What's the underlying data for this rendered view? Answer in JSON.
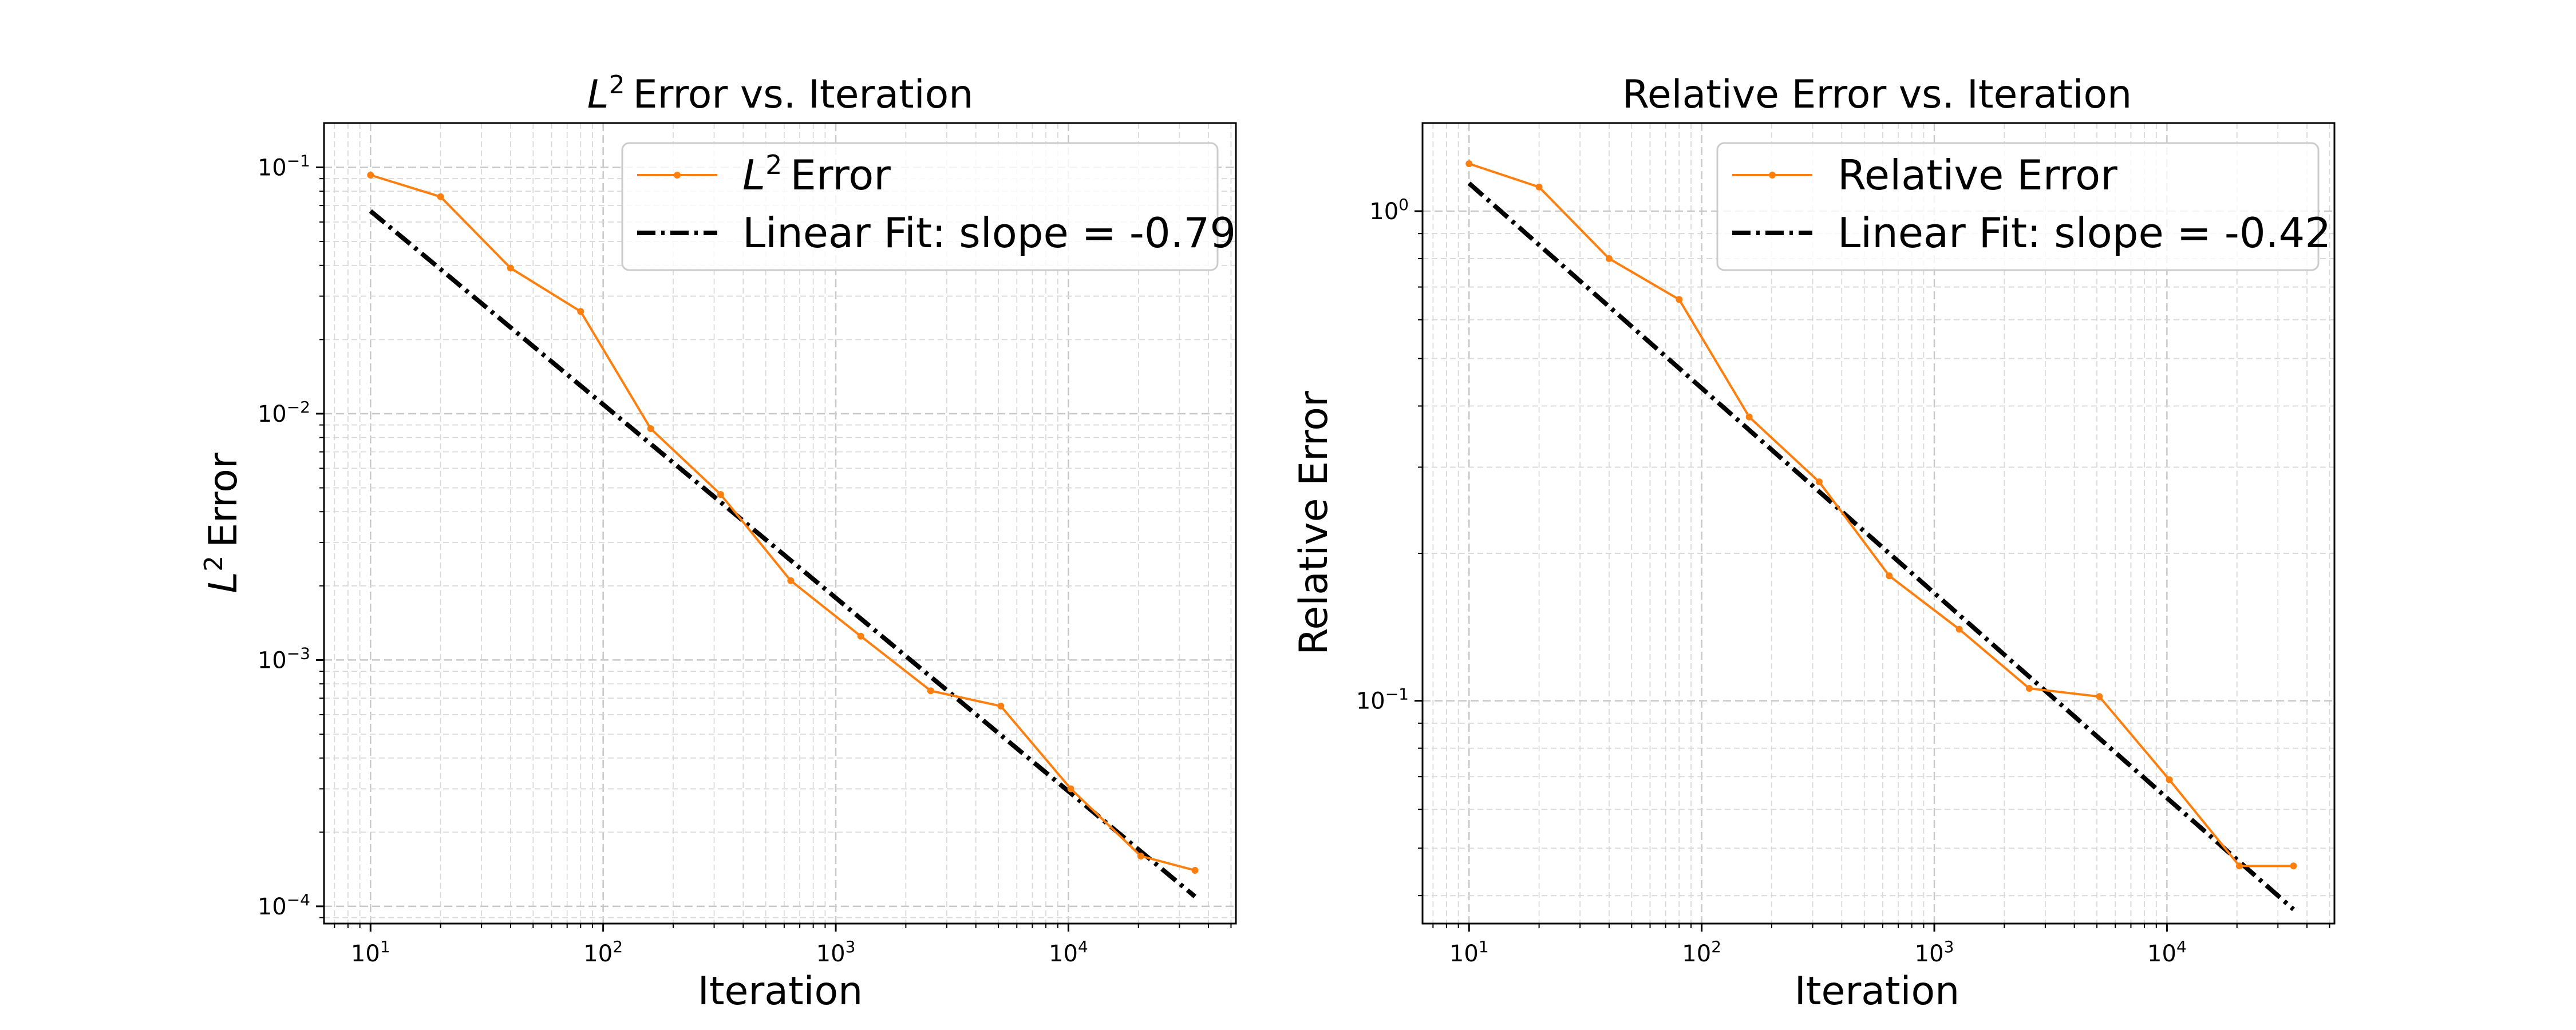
{
  "chart_data": [
    {
      "type": "line",
      "title_main": "Error vs. Iteration",
      "title_prefix": "L",
      "title_sup": "2",
      "xlabel": "Iteration",
      "ylabel_main": "Error",
      "ylabel_prefix": "L",
      "ylabel_sup": "2",
      "x_log_range": [
        0.8,
        4.72
      ],
      "y_log_range": [
        -4.07,
        -0.82
      ],
      "x_ticks": [
        1,
        2,
        3,
        4
      ],
      "y_ticks": [
        -4,
        -3,
        -2,
        -1
      ],
      "series": [
        {
          "name_main": "Error",
          "name_prefix": "L",
          "name_sup": "2",
          "style": "data",
          "color": "#ff7f0e",
          "x": [
            10,
            20,
            40,
            80,
            160,
            320,
            640,
            1280,
            2560,
            5120,
            10240,
            20480,
            35000
          ],
          "y": [
            0.093,
            0.076,
            0.039,
            0.026,
            0.0087,
            0.0047,
            0.0021,
            0.00125,
            0.00075,
            0.00065,
            0.0003,
            0.00016,
            0.00014
          ]
        },
        {
          "name_main": "Linear Fit: slope = -0.79",
          "name_prefix": "",
          "name_sup": "",
          "style": "fit",
          "color": "#000000",
          "x": [
            10,
            35000
          ],
          "y": [
            0.0665,
            0.0001096
          ]
        }
      ]
    },
    {
      "type": "line",
      "title_main": "Relative Error vs. Iteration",
      "title_prefix": "",
      "title_sup": "",
      "xlabel": "Iteration",
      "ylabel_main": "Relative Error",
      "ylabel_prefix": "",
      "ylabel_sup": "",
      "x_log_range": [
        0.8,
        4.72
      ],
      "y_log_range": [
        -1.455,
        0.18
      ],
      "x_ticks": [
        1,
        2,
        3,
        4
      ],
      "y_ticks": [
        -1,
        0
      ],
      "series": [
        {
          "name_main": "Relative Error",
          "name_prefix": "",
          "name_sup": "",
          "style": "data",
          "color": "#ff7f0e",
          "x": [
            10,
            20,
            40,
            80,
            160,
            320,
            640,
            1280,
            2560,
            5120,
            10240,
            20480,
            35000
          ],
          "y": [
            1.25,
            1.12,
            0.8,
            0.66,
            0.38,
            0.28,
            0.18,
            0.14,
            0.106,
            0.102,
            0.069,
            0.046,
            0.046
          ]
        },
        {
          "name_main": "Linear Fit: slope = -0.42",
          "name_prefix": "",
          "name_sup": "",
          "style": "fit",
          "color": "#000000",
          "x": [
            10,
            35000
          ],
          "y": [
            1.14,
            0.0375
          ]
        }
      ]
    }
  ]
}
